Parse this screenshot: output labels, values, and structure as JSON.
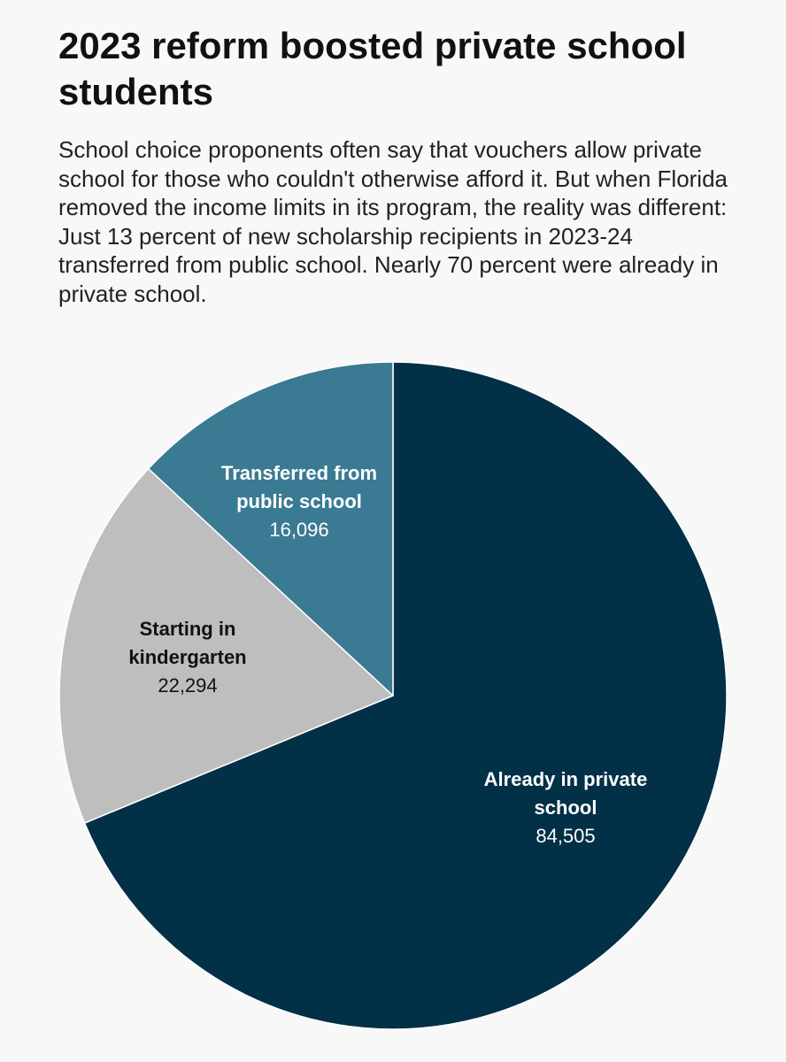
{
  "title": "2023 reform boosted private school students",
  "subtitle": "School choice proponents often say that vouchers allow private school for those who couldn't otherwise afford it. But when Florida removed the income limits in its program, the reality was different: Just 13 percent of new scholarship recipients in 2023-24 transferred from public school. Nearly 70 percent were already in private school.",
  "chart_data": {
    "type": "pie",
    "title": "2023 reform boosted private school students",
    "slices": [
      {
        "key": "already-in-private",
        "label_lines": [
          "Already in private",
          "school"
        ],
        "value": 84505,
        "value_label": "84,505",
        "color": "#023047",
        "text_color": "#ffffff"
      },
      {
        "key": "starting-in-kindergarten",
        "label_lines": [
          "Starting in",
          "kindergarten"
        ],
        "value": 22294,
        "value_label": "22,294",
        "color": "#bebebe",
        "text_color": "#111111"
      },
      {
        "key": "transferred-from-public",
        "label_lines": [
          "Transferred from",
          "public school"
        ],
        "value": 16096,
        "value_label": "16,096",
        "color": "#3b7a93",
        "text_color": "#ffffff"
      }
    ],
    "start": "12 o'clock",
    "direction": "clockwise",
    "slice_border_color": "#ffffff"
  }
}
